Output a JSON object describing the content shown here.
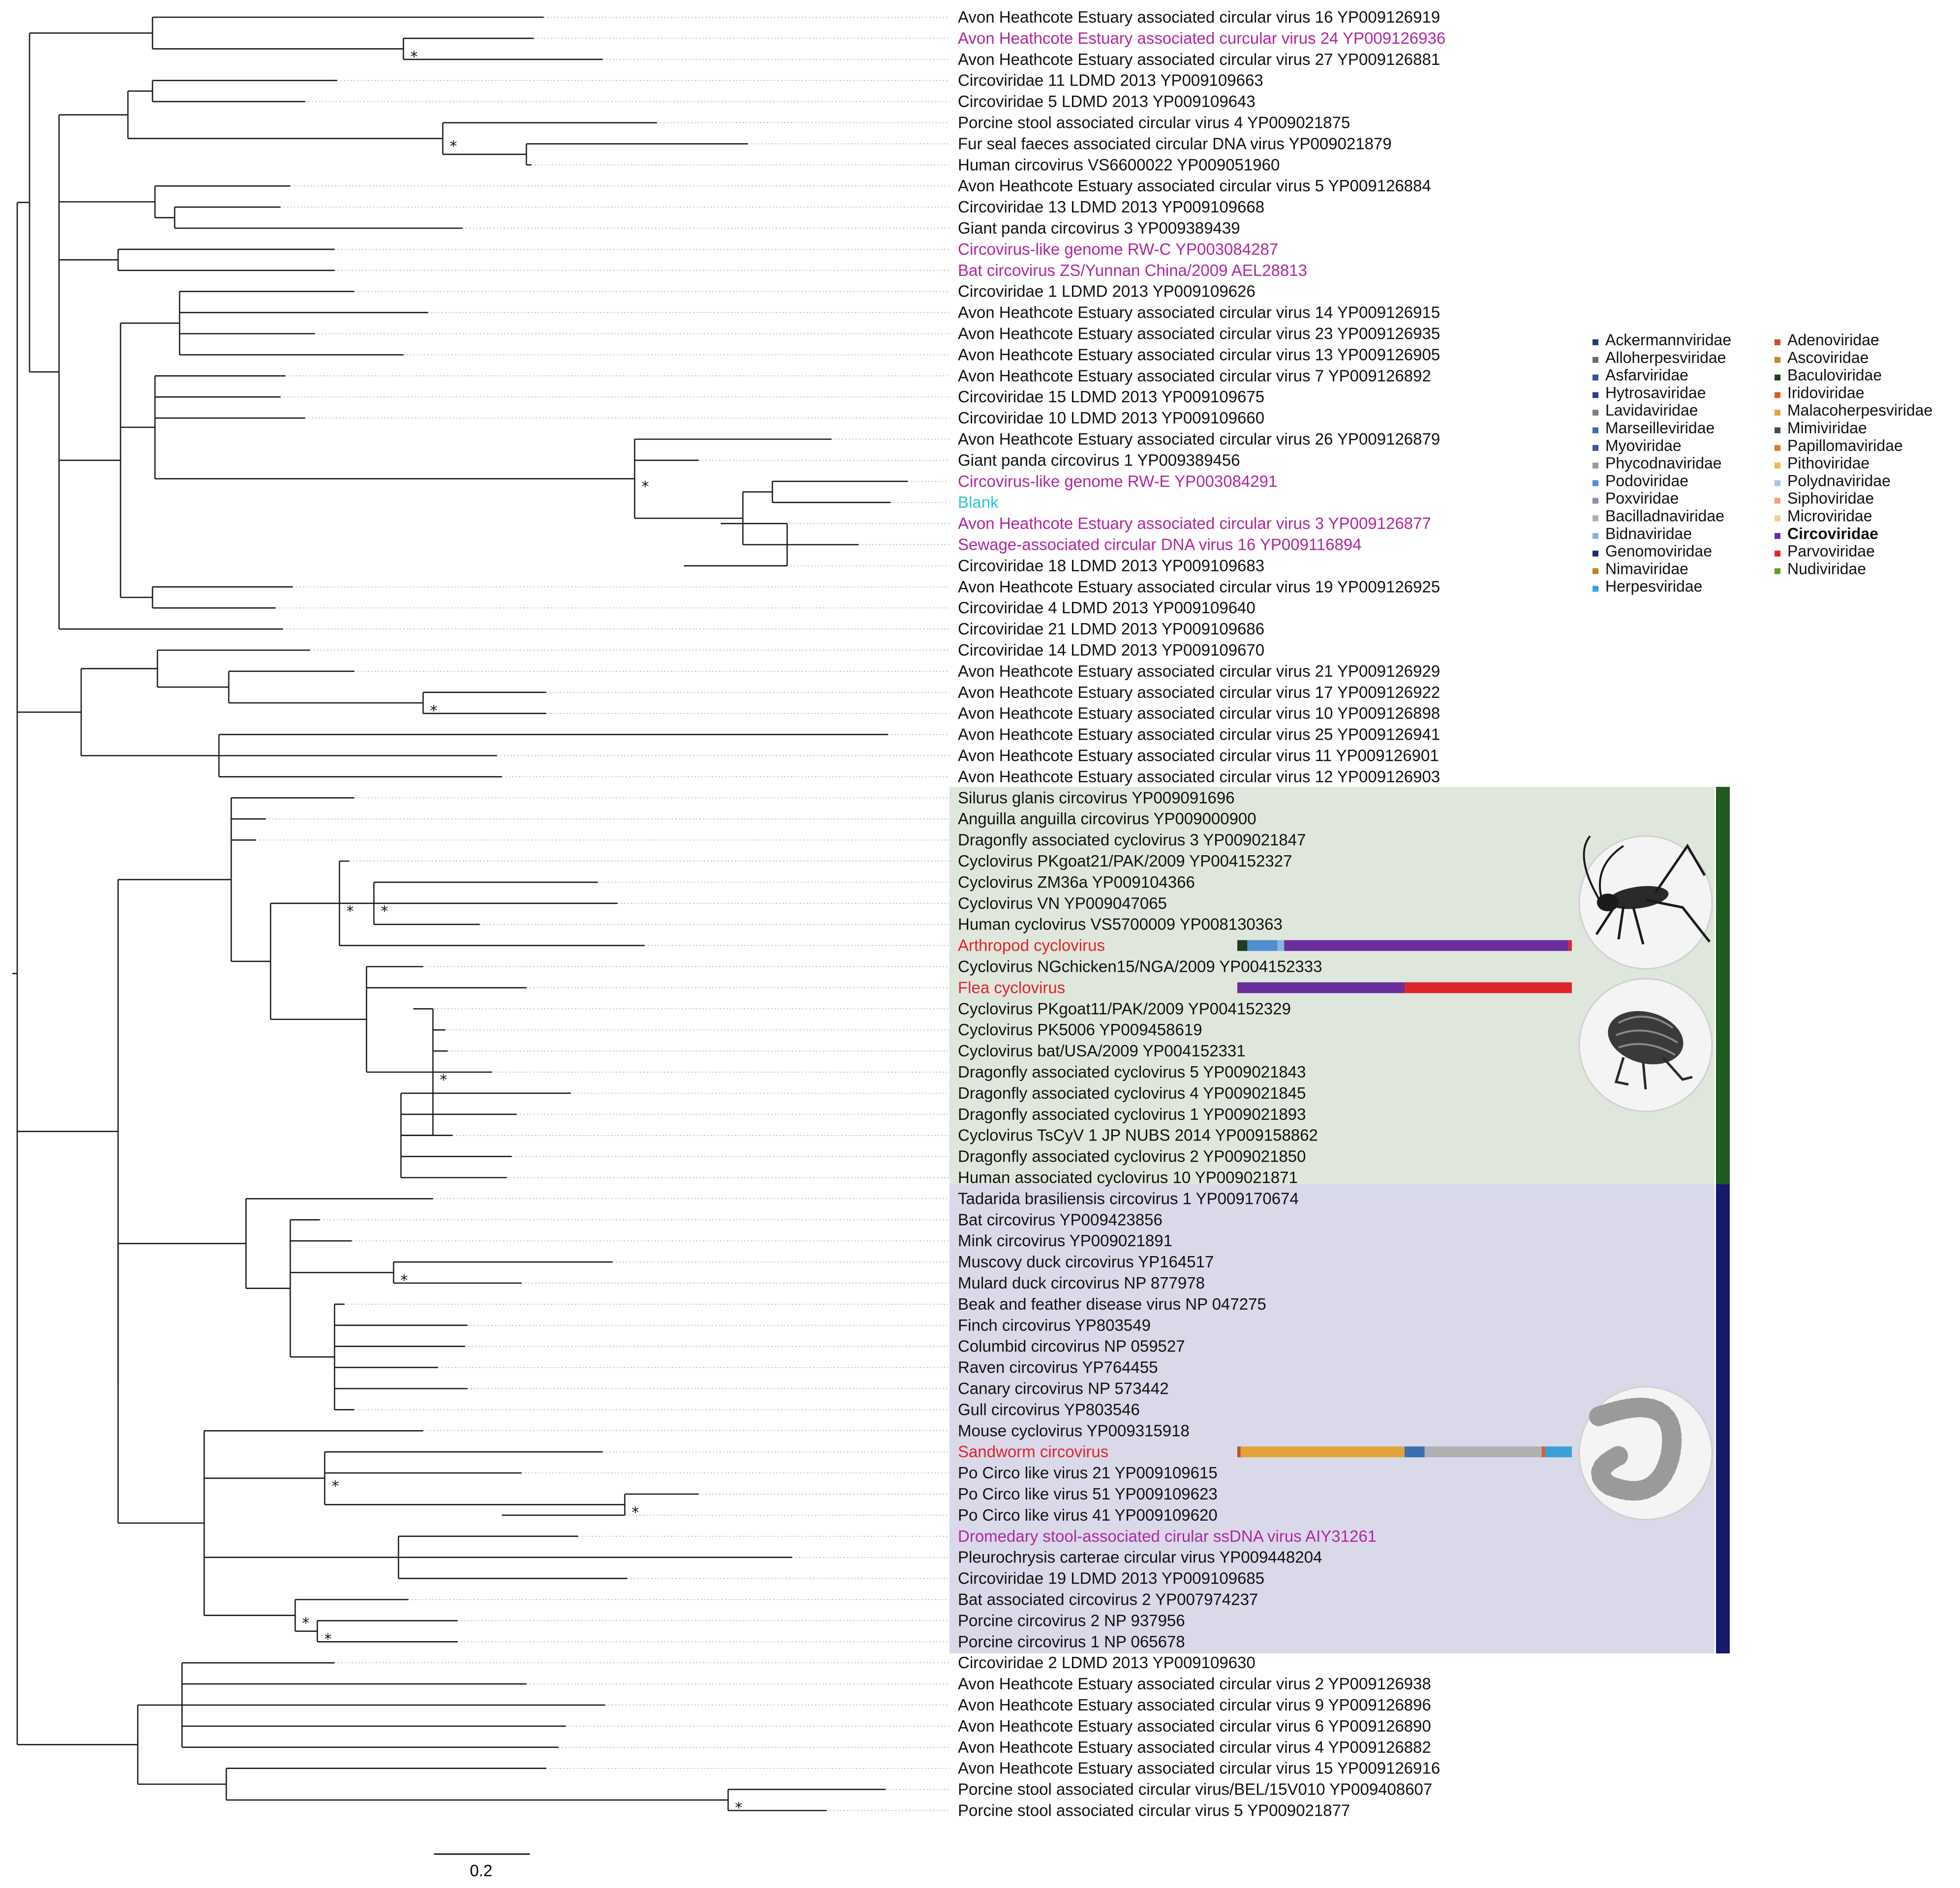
{
  "figure": {
    "scale_bar_label": "0.2",
    "clade_colors": {
      "cyclovirus": "#dfe7dc",
      "circovirus": "#d9d9ea",
      "cyclovirus_bar": "#1f5a1f",
      "circovirus_bar": "#151a6b"
    },
    "label_colors": {
      "black": "#111111",
      "magenta": "#b0279e",
      "red": "#e0242c",
      "cyan": "#2cc4d0"
    }
  },
  "taxa": [
    {
      "label": "Avon Heathcote Estuary associated circular virus 16 YP009126919",
      "color": "black"
    },
    {
      "label": "Avon Heathcote Estuary associated curcular virus 24 YP009126936",
      "color": "magenta"
    },
    {
      "label": "Avon Heathcote Estuary associated circular virus 27 YP009126881",
      "color": "black"
    },
    {
      "label": "Circoviridae 11 LDMD 2013 YP009109663",
      "color": "black"
    },
    {
      "label": "Circoviridae 5 LDMD 2013 YP009109643",
      "color": "black"
    },
    {
      "label": "Porcine stool associated circular virus 4 YP009021875",
      "color": "black"
    },
    {
      "label": "Fur seal faeces associated circular DNA virus YP009021879",
      "color": "black"
    },
    {
      "label": "Human circovirus VS6600022 YP009051960",
      "color": "black"
    },
    {
      "label": "Avon Heathcote Estuary associated circular virus 5 YP009126884",
      "color": "black"
    },
    {
      "label": "Circoviridae 13 LDMD 2013 YP009109668",
      "color": "black"
    },
    {
      "label": "Giant panda circovirus 3 YP009389439",
      "color": "black"
    },
    {
      "label": "Circovirus-like genome RW-C YP003084287",
      "color": "magenta"
    },
    {
      "label": "Bat circovirus ZS/Yunnan China/2009 AEL28813",
      "color": "magenta"
    },
    {
      "label": "Circoviridae 1 LDMD 2013 YP009109626",
      "color": "black"
    },
    {
      "label": "Avon Heathcote Estuary associated circular virus 14 YP009126915",
      "color": "black"
    },
    {
      "label": "Avon Heathcote Estuary associated circular virus 23 YP009126935",
      "color": "black"
    },
    {
      "label": "Avon Heathcote Estuary associated circular virus 13 YP009126905",
      "color": "black"
    },
    {
      "label": "Avon Heathcote Estuary associated circular virus 7 YP009126892",
      "color": "black"
    },
    {
      "label": "Circoviridae 15 LDMD 2013 YP009109675",
      "color": "black"
    },
    {
      "label": "Circoviridae 10 LDMD 2013 YP009109660",
      "color": "black"
    },
    {
      "label": "Avon Heathcote Estuary associated circular virus 26 YP009126879",
      "color": "black"
    },
    {
      "label": "Giant panda circovirus 1 YP009389456",
      "color": "black"
    },
    {
      "label": "Circovirus-like genome RW-E YP003084291",
      "color": "magenta"
    },
    {
      "label": "Blank",
      "color": "cyan"
    },
    {
      "label": "Avon Heathcote Estuary associated circular virus 3 YP009126877",
      "color": "magenta"
    },
    {
      "label": "Sewage-associated circular DNA virus 16 YP009116894",
      "color": "magenta"
    },
    {
      "label": "Circoviridae 18 LDMD 2013 YP009109683",
      "color": "black"
    },
    {
      "label": "Avon Heathcote Estuary associated circular virus 19 YP009126925",
      "color": "black"
    },
    {
      "label": "Circoviridae 4 LDMD 2013 YP009109640",
      "color": "black"
    },
    {
      "label": "Circoviridae 21 LDMD 2013 YP009109686",
      "color": "black"
    },
    {
      "label": "Circoviridae 14 LDMD 2013 YP009109670",
      "color": "black"
    },
    {
      "label": "Avon Heathcote Estuary associated circular virus 21 YP009126929",
      "color": "black"
    },
    {
      "label": "Avon Heathcote Estuary associated circular virus 17 YP009126922",
      "color": "black"
    },
    {
      "label": "Avon Heathcote Estuary associated circular virus 10 YP009126898",
      "color": "black"
    },
    {
      "label": "Avon Heathcote Estuary associated circular virus 25 YP009126941",
      "color": "black"
    },
    {
      "label": "Avon Heathcote Estuary associated circular virus 11 YP009126901",
      "color": "black"
    },
    {
      "label": "Avon Heathcote Estuary associated circular virus 12 YP009126903",
      "color": "black"
    },
    {
      "label": "Silurus glanis circovirus YP009091696",
      "color": "black"
    },
    {
      "label": "Anguilla anguilla circovirus YP009000900",
      "color": "black"
    },
    {
      "label": "Dragonfly associated cyclovirus 3 YP009021847",
      "color": "black"
    },
    {
      "label": "Cyclovirus PKgoat21/PAK/2009 YP004152327",
      "color": "black"
    },
    {
      "label": "Cyclovirus ZM36a YP009104366",
      "color": "black"
    },
    {
      "label": "Cyclovirus VN YP009047065",
      "color": "black"
    },
    {
      "label": "Human cyclovirus VS5700009 YP008130363",
      "color": "black"
    },
    {
      "label": "Arthropod cyclovirus",
      "color": "red"
    },
    {
      "label": "Cyclovirus NGchicken15/NGA/2009 YP004152333",
      "color": "black"
    },
    {
      "label": "Flea cyclovirus",
      "color": "red"
    },
    {
      "label": "Cyclovirus PKgoat11/PAK/2009 YP004152329",
      "color": "black"
    },
    {
      "label": "Cyclovirus PK5006 YP009458619",
      "color": "black"
    },
    {
      "label": "Cyclovirus bat/USA/2009 YP004152331",
      "color": "black"
    },
    {
      "label": "Dragonfly associated cyclovirus 5 YP009021843",
      "color": "black"
    },
    {
      "label": "Dragonfly associated cyclovirus 4 YP009021845",
      "color": "black"
    },
    {
      "label": "Dragonfly associated cyclovirus 1 YP009021893",
      "color": "black"
    },
    {
      "label": "Cyclovirus TsCyV 1 JP NUBS 2014 YP009158862",
      "color": "black"
    },
    {
      "label": "Dragonfly associated cyclovirus 2 YP009021850",
      "color": "black"
    },
    {
      "label": "Human associated cyclovirus 10 YP009021871",
      "color": "black"
    },
    {
      "label": "Tadarida brasiliensis circovirus 1 YP009170674",
      "color": "black"
    },
    {
      "label": "Bat circovirus YP009423856",
      "color": "black"
    },
    {
      "label": "Mink circovirus YP009021891",
      "color": "black"
    },
    {
      "label": "Muscovy duck circovirus YP164517",
      "color": "black"
    },
    {
      "label": "Mulard duck circovirus NP 877978",
      "color": "black"
    },
    {
      "label": "Beak and feather disease virus NP 047275",
      "color": "black"
    },
    {
      "label": "Finch circovirus YP803549",
      "color": "black"
    },
    {
      "label": "Columbid circovirus NP 059527",
      "color": "black"
    },
    {
      "label": "Raven circovirus YP764455",
      "color": "black"
    },
    {
      "label": "Canary circovirus NP 573442",
      "color": "black"
    },
    {
      "label": "Gull circovirus YP803546",
      "color": "black"
    },
    {
      "label": "Mouse cyclovirus YP009315918",
      "color": "black"
    },
    {
      "label": "Sandworm circovirus",
      "color": "red"
    },
    {
      "label": "Po Circo like virus 21 YP009109615",
      "color": "black"
    },
    {
      "label": "Po Circo like virus 51 YP009109623",
      "color": "black"
    },
    {
      "label": "Po Circo like virus 41 YP009109620",
      "color": "black"
    },
    {
      "label": "Dromedary stool-associated cirular ssDNA virus AIY31261",
      "color": "magenta"
    },
    {
      "label": "Pleurochrysis carterae circular virus YP009448204",
      "color": "black"
    },
    {
      "label": "Circoviridae 19 LDMD 2013 YP009109685",
      "color": "black"
    },
    {
      "label": "Bat associated circovirus 2 YP007974237",
      "color": "black"
    },
    {
      "label": "Porcine circovirus 2 NP 937956",
      "color": "black"
    },
    {
      "label": "Porcine circovirus 1 NP 065678",
      "color": "black"
    },
    {
      "label": "Circoviridae 2 LDMD 2013 YP009109630",
      "color": "black"
    },
    {
      "label": "Avon Heathcote Estuary associated circular virus 2 YP009126938",
      "color": "black"
    },
    {
      "label": "Avon Heathcote Estuary associated circular virus 9 YP009126896",
      "color": "black"
    },
    {
      "label": "Avon Heathcote Estuary associated circular virus 6 YP009126890",
      "color": "black"
    },
    {
      "label": "Avon Heathcote Estuary associated circular virus 4 YP009126882",
      "color": "black"
    },
    {
      "label": "Avon Heathcote Estuary associated circular virus 15 YP009126916",
      "color": "black"
    },
    {
      "label": "Porcine stool associated circular virus/BEL/15V010 YP009408607",
      "color": "black"
    },
    {
      "label": "Porcine stool associated circular virus 5 YP009021877",
      "color": "black"
    }
  ],
  "legend": [
    {
      "name": "Ackermannviridae",
      "color": "#1d3f7a"
    },
    {
      "name": "Alloherpesviridae",
      "color": "#6b6b6b"
    },
    {
      "name": "Asfarviridae",
      "color": "#2f5597"
    },
    {
      "name": "Hytrosaviridae",
      "color": "#2b3f8c"
    },
    {
      "name": "Lavidaviridae",
      "color": "#7f7f7f"
    },
    {
      "name": "Marseilleviridae",
      "color": "#3a6fb0"
    },
    {
      "name": "Myoviridae",
      "color": "#3f51a8"
    },
    {
      "name": "Phycodnaviridae",
      "color": "#9a9a9a"
    },
    {
      "name": "Podoviridae",
      "color": "#4f8fcf"
    },
    {
      "name": "Poxviridae",
      "color": "#8f8fb0"
    },
    {
      "name": "Bacilladnaviridae",
      "color": "#b0b0b0"
    },
    {
      "name": "Bidnaviridae",
      "color": "#8ab4e0"
    },
    {
      "name": "Genomoviridae",
      "color": "#1a2a7a"
    },
    {
      "name": "Nimaviridae",
      "color": "#b8862b"
    },
    {
      "name": "Herpesviridae",
      "color": "#3ba0d8"
    },
    {
      "name": "Adenoviridae",
      "color": "#c0502b"
    },
    {
      "name": "Ascoviridae",
      "color": "#c08a2b"
    },
    {
      "name": "Baculoviridae",
      "color": "#1f3d1f"
    },
    {
      "name": "Iridoviridae",
      "color": "#e0582b"
    },
    {
      "name": "Malacoherpesviridae",
      "color": "#e0a43a"
    },
    {
      "name": "Mimiviridae",
      "color": "#4a4a4a"
    },
    {
      "name": "Papillomaviridae",
      "color": "#e07a2b"
    },
    {
      "name": "Pithoviridae",
      "color": "#e8b84a"
    },
    {
      "name": "Polydnaviridae",
      "color": "#a8c4e8"
    },
    {
      "name": "Siphoviridae",
      "color": "#f0a070"
    },
    {
      "name": "Microviridae",
      "color": "#f4d08a"
    },
    {
      "name": "Circoviridae",
      "color": "#6a2d9c",
      "bold": true
    },
    {
      "name": "Parvoviridae",
      "color": "#e0242c"
    },
    {
      "name": "Nudiviridae",
      "color": "#5aa02c"
    }
  ],
  "blast_bars": [
    {
      "taxon": "Arthropod cyclovirus",
      "segments": [
        {
          "family": "Baculoviridae",
          "fraction": 0.03
        },
        {
          "family": "Podoviridae",
          "fraction": 0.09
        },
        {
          "family": "Bidnaviridae",
          "fraction": 0.02
        },
        {
          "family": "Circoviridae",
          "fraction": 0.85
        },
        {
          "family": "Parvoviridae",
          "fraction": 0.01
        }
      ]
    },
    {
      "taxon": "Flea cyclovirus",
      "segments": [
        {
          "family": "Circoviridae",
          "fraction": 0.5
        },
        {
          "family": "Parvoviridae",
          "fraction": 0.5
        }
      ]
    },
    {
      "taxon": "Sandworm circovirus",
      "segments": [
        {
          "family": "Adenoviridae",
          "fraction": 0.01
        },
        {
          "family": "Malacoherpesviridae",
          "fraction": 0.49
        },
        {
          "family": "Marseilleviridae",
          "fraction": 0.06
        },
        {
          "family": "Bacilladnaviridae",
          "fraction": 0.35
        },
        {
          "family": "Iridoviridae",
          "fraction": 0.01
        },
        {
          "family": "Herpesviridae",
          "fraction": 0.08
        }
      ]
    }
  ],
  "illustrations": [
    {
      "name": "cricket-illustration"
    },
    {
      "name": "flea-illustration"
    },
    {
      "name": "sandworm-illustration"
    }
  ]
}
